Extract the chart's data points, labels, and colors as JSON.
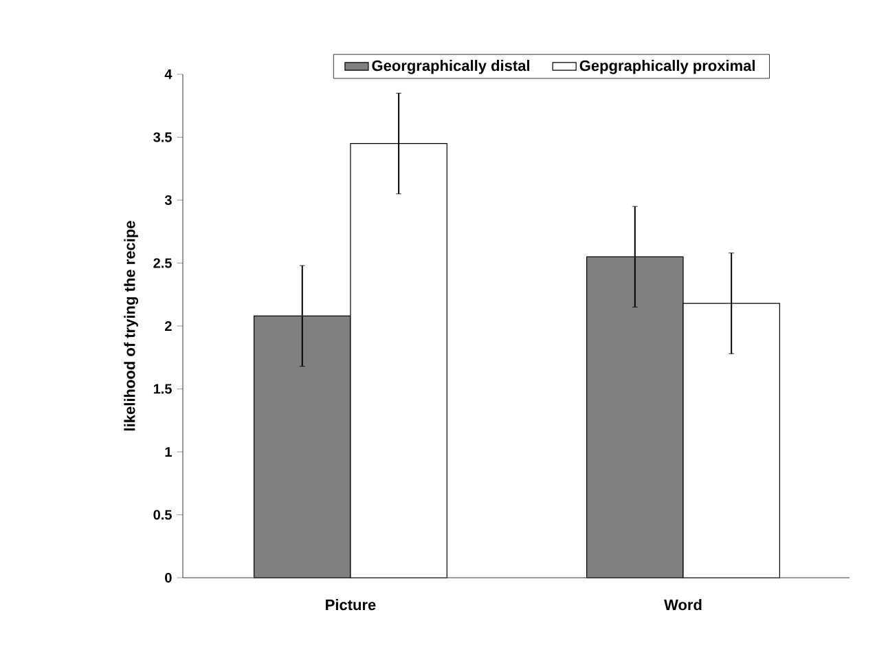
{
  "chart_data": {
    "type": "bar",
    "ylabel": "likelihood of trying the recipe",
    "categories": [
      "Picture",
      "Word"
    ],
    "series": [
      {
        "name": "Georgraphically distal",
        "color": "#808080",
        "values": [
          2.08,
          2.55
        ],
        "errors": [
          0.4,
          0.4
        ]
      },
      {
        "name": "Gepgraphically proximal",
        "color": "#ffffff",
        "values": [
          3.45,
          2.18
        ],
        "errors": [
          0.4,
          0.4
        ]
      }
    ],
    "ylim": [
      0,
      4
    ],
    "yticks": [
      0,
      0.5,
      1,
      1.5,
      2,
      2.5,
      3,
      3.5,
      4
    ],
    "legend": "top",
    "grid": false
  }
}
